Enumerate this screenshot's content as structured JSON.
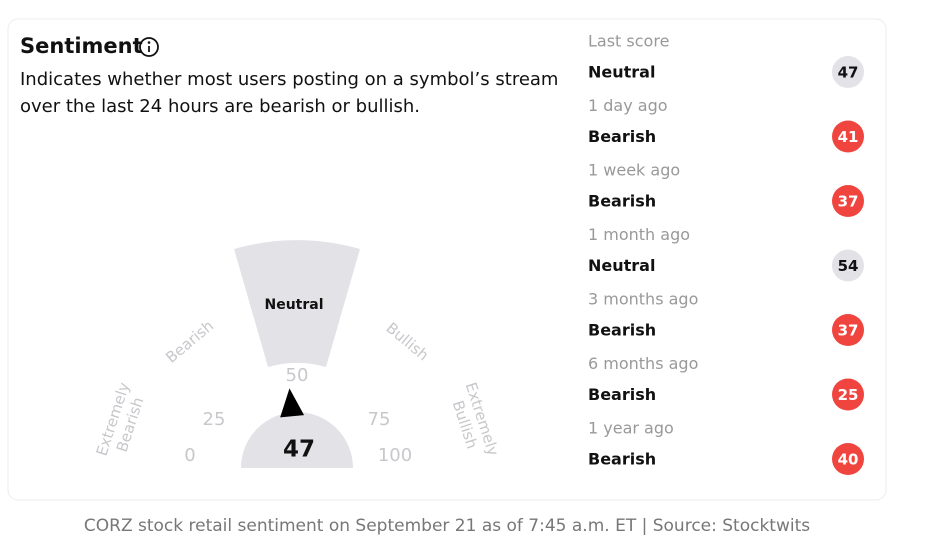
{
  "header": {
    "title": "Sentiment",
    "description": [
      "Indicates whether most users posting on a symbol’s stream",
      "over the last 24 hours are bearish or bullish."
    ]
  },
  "gauge": {
    "value": 47,
    "zone": "Neutral",
    "ticks": [
      0,
      25,
      50,
      75,
      100
    ],
    "zones": [
      [
        "Extremely",
        "Bearish"
      ],
      [
        "Bearish"
      ],
      [
        "Bullish"
      ],
      [
        "Extremely",
        "Bullish"
      ]
    ]
  },
  "history": [
    {
      "period": "Last score",
      "label": "Neutral",
      "score": 47,
      "color": "#e3e2e7",
      "text_color": "#111111"
    },
    {
      "period": "1 day ago",
      "label": "Bearish",
      "score": 41,
      "color": "#f0443f",
      "text_color": "#ffffff"
    },
    {
      "period": "1 week ago",
      "label": "Bearish",
      "score": 37,
      "color": "#f0443f",
      "text_color": "#ffffff"
    },
    {
      "period": "1 month ago",
      "label": "Neutral",
      "score": 54,
      "color": "#e3e2e7",
      "text_color": "#111111"
    },
    {
      "period": "3 months ago",
      "label": "Bearish",
      "score": 37,
      "color": "#f0443f",
      "text_color": "#ffffff"
    },
    {
      "period": "6 months ago",
      "label": "Bearish",
      "score": 25,
      "color": "#f0443f",
      "text_color": "#ffffff"
    },
    {
      "period": "1 year ago",
      "label": "Bearish",
      "score": 40,
      "color": "#f0443f",
      "text_color": "#ffffff"
    }
  ],
  "caption": "CORZ stock retail sentiment on September 21 as of 7:45 a.m. ET | Source: Stocktwits"
}
